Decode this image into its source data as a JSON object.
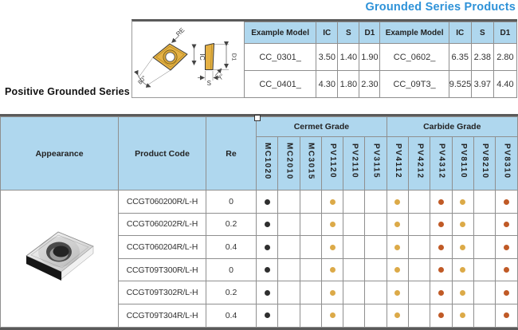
{
  "title": "Grounded Series Products",
  "series_label": "Positive Grounded Series",
  "colors": {
    "accent_blue": "#2e92d8",
    "header_blue": "#afd7ee",
    "insert_gold": "#e5b145",
    "thick_border": "#5a5a5a",
    "grid_gray": "#8f8f8f"
  },
  "diagram": {
    "labels": {
      "re": "RE",
      "ic": "IC",
      "angle": "80°",
      "s": "S",
      "clearance": "7°",
      "d1": "D1"
    }
  },
  "spec_table": {
    "columns": [
      "Example Model",
      "IC",
      "S",
      "D1",
      "Example Model",
      "IC",
      "S",
      "D1"
    ],
    "rows": [
      [
        "CC_0301_",
        "3.50",
        "1.40",
        "1.90",
        "CC_0602_",
        "6.35",
        "2.38",
        "2.80"
      ],
      [
        "CC_0401_",
        "4.30",
        "1.80",
        "2.30",
        "CC_09T3_",
        "9.525",
        "3.97",
        "4.40"
      ]
    ]
  },
  "main_table": {
    "headers": {
      "appearance": "Appearance",
      "product_code": "Product Code",
      "re": "Re",
      "cermet_group": "Cermet Grade",
      "carbide_group": "Carbide Grade"
    },
    "grade_columns": [
      "MC1020",
      "MC2010",
      "MC3015",
      "PV1120",
      "PV2110",
      "PV3115",
      "PV4112",
      "PV4212",
      "PV4312",
      "PV8110",
      "PV8210",
      "PV8310"
    ],
    "dot_colors": {
      "black": "#2f2f2f",
      "gold": "#dcaa48",
      "orange": "#c05a26"
    },
    "rows": [
      {
        "product_code": "CCGT060200R/L-H",
        "re": "0",
        "dots": [
          "black",
          "",
          "",
          "gold",
          "",
          "",
          "gold",
          "",
          "orange",
          "gold",
          "",
          "orange"
        ]
      },
      {
        "product_code": "CCGT060202R/L-H",
        "re": "0.2",
        "dots": [
          "black",
          "",
          "",
          "gold",
          "",
          "",
          "gold",
          "",
          "orange",
          "gold",
          "",
          "orange"
        ]
      },
      {
        "product_code": "CCGT060204R/L-H",
        "re": "0.4",
        "dots": [
          "black",
          "",
          "",
          "gold",
          "",
          "",
          "gold",
          "",
          "orange",
          "gold",
          "",
          "orange"
        ]
      },
      {
        "product_code": "CCGT09T300R/L-H",
        "re": "0",
        "dots": [
          "black",
          "",
          "",
          "gold",
          "",
          "",
          "gold",
          "",
          "orange",
          "gold",
          "",
          "orange"
        ]
      },
      {
        "product_code": "CCGT09T302R/L-H",
        "re": "0.2",
        "dots": [
          "black",
          "",
          "",
          "gold",
          "",
          "",
          "gold",
          "",
          "orange",
          "gold",
          "",
          "orange"
        ]
      },
      {
        "product_code": "CCGT09T304R/L-H",
        "re": "0.4",
        "dots": [
          "black",
          "",
          "",
          "gold",
          "",
          "",
          "gold",
          "",
          "orange",
          "gold",
          "",
          "orange"
        ]
      }
    ]
  }
}
